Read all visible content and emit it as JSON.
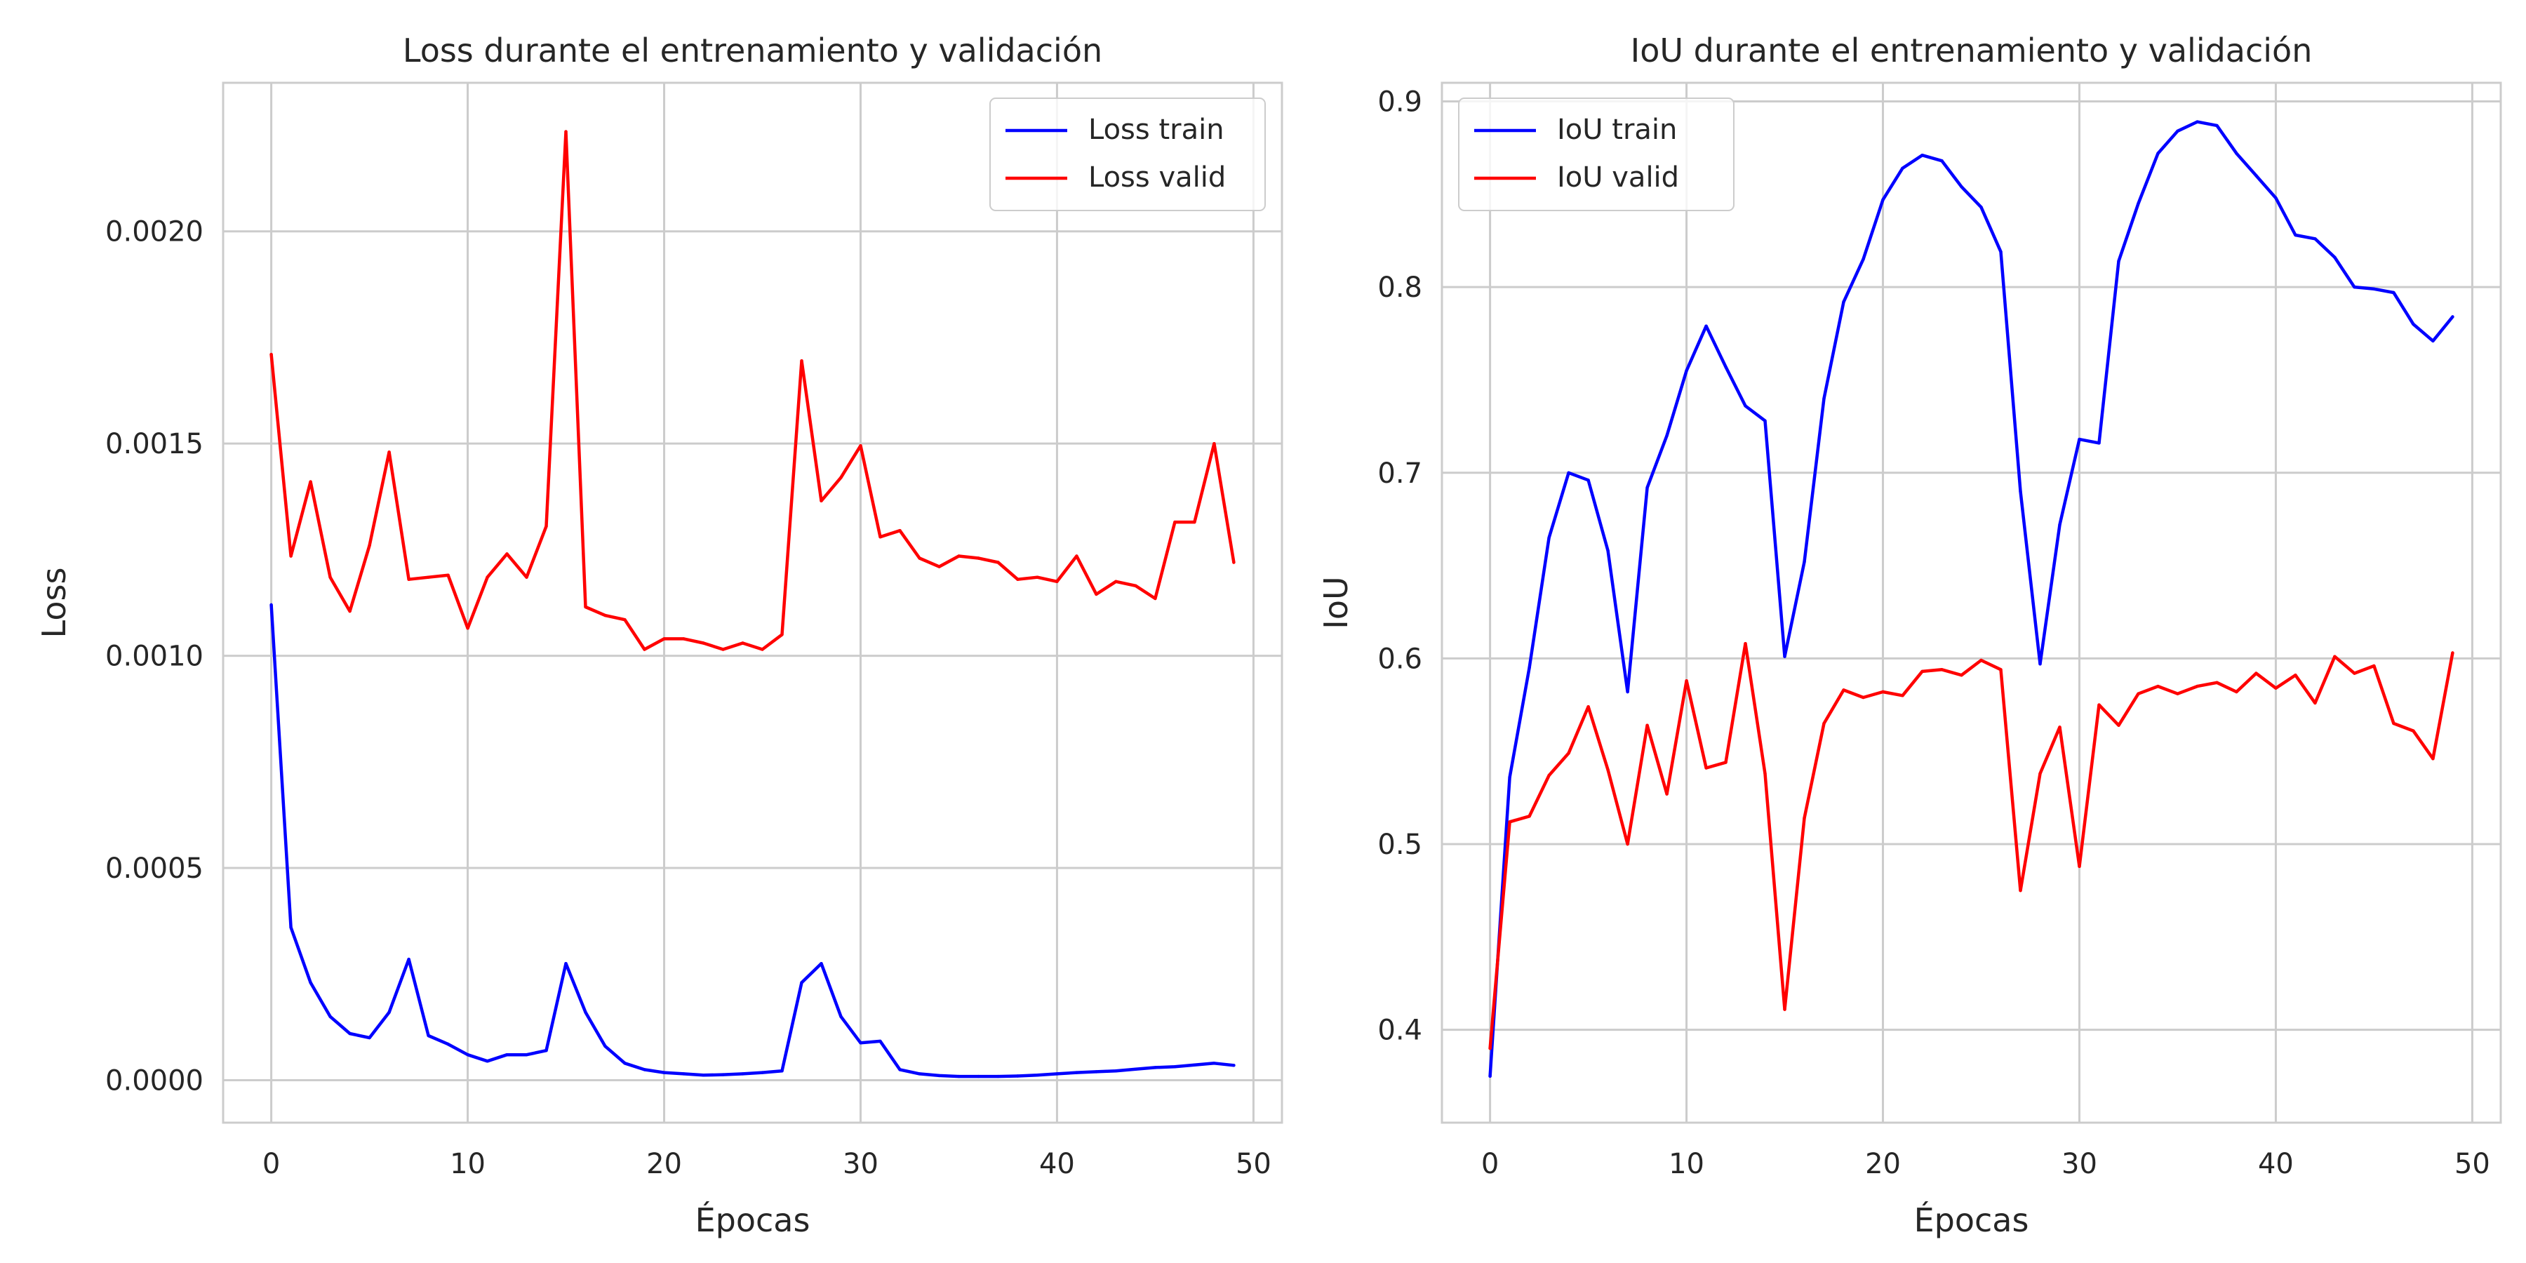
{
  "chart_data": [
    {
      "type": "line",
      "title": "Loss durante el entrenamiento y validación",
      "xlabel": "Épocas",
      "ylabel": "Loss",
      "xlim": [
        -2.45,
        51.45
      ],
      "ylim": [
        -0.0001,
        0.00235
      ],
      "xticks": [
        0,
        10,
        20,
        30,
        40,
        50
      ],
      "xtick_labels": [
        "0",
        "10",
        "20",
        "30",
        "40",
        "50"
      ],
      "yticks": [
        0.0,
        0.0005,
        0.001,
        0.0015,
        0.002
      ],
      "ytick_labels": [
        "0.0000",
        "0.0005",
        "0.0010",
        "0.0015",
        "0.0020"
      ],
      "grid": true,
      "legend_position": "top-right",
      "x": [
        0,
        1,
        2,
        3,
        4,
        5,
        6,
        7,
        8,
        9,
        10,
        11,
        12,
        13,
        14,
        15,
        16,
        17,
        18,
        19,
        20,
        21,
        22,
        23,
        24,
        25,
        26,
        27,
        28,
        29,
        30,
        31,
        32,
        33,
        34,
        35,
        36,
        37,
        38,
        39,
        40,
        41,
        42,
        43,
        44,
        45,
        46,
        47,
        48,
        49
      ],
      "series": [
        {
          "name": "Loss train",
          "color": "#0000ff",
          "values": [
            0.00112,
            0.00036,
            0.00023,
            0.00015,
            0.00011,
            0.0001,
            0.00016,
            0.000285,
            0.000105,
            8.5e-05,
            6e-05,
            4.5e-05,
            6e-05,
            6e-05,
            7e-05,
            0.000275,
            0.00016,
            8e-05,
            4e-05,
            2.5e-05,
            1.8e-05,
            1.5e-05,
            1.2e-05,
            1.3e-05,
            1.5e-05,
            1.8e-05,
            2.2e-05,
            0.00023,
            0.000275,
            0.00015,
            8.8e-05,
            9.2e-05,
            2.5e-05,
            1.5e-05,
            1.1e-05,
            9e-06,
            9e-06,
            9e-06,
            1e-05,
            1.2e-05,
            1.5e-05,
            1.8e-05,
            2e-05,
            2.2e-05,
            2.6e-05,
            3e-05,
            3.2e-05,
            3.6e-05,
            4e-05,
            3.5e-05
          ]
        },
        {
          "name": "Loss valid",
          "color": "#ff0000",
          "values": [
            0.00171,
            0.001235,
            0.00141,
            0.001185,
            0.001105,
            0.00126,
            0.00148,
            0.00118,
            0.001185,
            0.00119,
            0.001065,
            0.001185,
            0.00124,
            0.001185,
            0.001305,
            0.002235,
            0.001115,
            0.001095,
            0.001085,
            0.001015,
            0.00104,
            0.00104,
            0.00103,
            0.001015,
            0.00103,
            0.001015,
            0.00105,
            0.001695,
            0.001365,
            0.00142,
            0.001495,
            0.00128,
            0.001295,
            0.00123,
            0.00121,
            0.001235,
            0.00123,
            0.00122,
            0.00118,
            0.001185,
            0.001175,
            0.001235,
            0.001145,
            0.001175,
            0.001165,
            0.001135,
            0.001315,
            0.001315,
            0.0015,
            0.00122
          ]
        }
      ]
    },
    {
      "type": "line",
      "title": "IoU durante el entrenamiento y validación",
      "xlabel": "Épocas",
      "ylabel": "IoU",
      "xlim": [
        -2.45,
        51.45
      ],
      "ylim": [
        0.35,
        0.91
      ],
      "xticks": [
        0,
        10,
        20,
        30,
        40,
        50
      ],
      "xtick_labels": [
        "0",
        "10",
        "20",
        "30",
        "40",
        "50"
      ],
      "yticks": [
        0.4,
        0.5,
        0.6,
        0.7,
        0.8,
        0.9
      ],
      "ytick_labels": [
        "0.4",
        "0.5",
        "0.6",
        "0.7",
        "0.8",
        "0.9"
      ],
      "grid": true,
      "legend_position": "top-left",
      "x": [
        0,
        1,
        2,
        3,
        4,
        5,
        6,
        7,
        8,
        9,
        10,
        11,
        12,
        13,
        14,
        15,
        16,
        17,
        18,
        19,
        20,
        21,
        22,
        23,
        24,
        25,
        26,
        27,
        28,
        29,
        30,
        31,
        32,
        33,
        34,
        35,
        36,
        37,
        38,
        39,
        40,
        41,
        42,
        43,
        44,
        45,
        46,
        47,
        48,
        49
      ],
      "series": [
        {
          "name": "IoU train",
          "color": "#0000ff",
          "values": [
            0.375,
            0.536,
            0.595,
            0.665,
            0.7,
            0.696,
            0.658,
            0.582,
            0.692,
            0.72,
            0.755,
            0.779,
            0.757,
            0.736,
            0.728,
            0.601,
            0.652,
            0.74,
            0.792,
            0.815,
            0.847,
            0.864,
            0.871,
            0.868,
            0.854,
            0.843,
            0.819,
            0.69,
            0.597,
            0.672,
            0.718,
            0.716,
            0.814,
            0.845,
            0.872,
            0.884,
            0.889,
            0.887,
            0.872,
            0.86,
            0.848,
            0.828,
            0.826,
            0.816,
            0.8,
            0.799,
            0.797,
            0.78,
            0.771,
            0.784
          ]
        },
        {
          "name": "IoU valid",
          "color": "#ff0000",
          "values": [
            0.39,
            0.512,
            0.515,
            0.537,
            0.549,
            0.574,
            0.54,
            0.5,
            0.564,
            0.527,
            0.588,
            0.541,
            0.544,
            0.608,
            0.538,
            0.411,
            0.514,
            0.565,
            0.583,
            0.579,
            0.582,
            0.58,
            0.593,
            0.594,
            0.591,
            0.599,
            0.594,
            0.475,
            0.538,
            0.563,
            0.488,
            0.575,
            0.564,
            0.581,
            0.585,
            0.581,
            0.585,
            0.587,
            0.582,
            0.592,
            0.584,
            0.591,
            0.576,
            0.601,
            0.592,
            0.596,
            0.565,
            0.561,
            0.546,
            0.603
          ]
        }
      ]
    }
  ]
}
